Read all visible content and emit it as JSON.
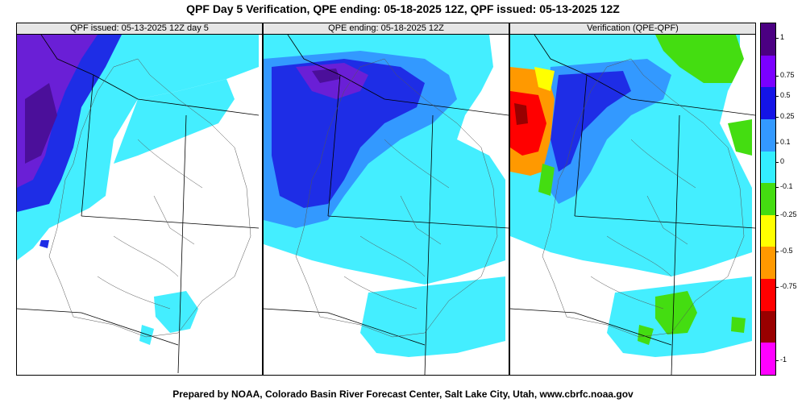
{
  "title": "QPF Day 5 Verification, QPE ending: 05-18-2025 12Z, QPF issued: 05-13-2025 12Z",
  "footer": "Prepared by NOAA, Colorado Basin River Forecast Center, Salt Lake City, Utah, www.cbrfc.noaa.gov",
  "panels": [
    {
      "title": "QPF issued: 05-13-2025 12Z day 5"
    },
    {
      "title": "QPE ending: 05-18-2025 12Z"
    },
    {
      "title": "Verification (QPE-QPF)"
    }
  ],
  "colorbar": {
    "labels": [
      "1",
      "0.75",
      "0.5",
      "0.25",
      "0.1",
      "0",
      "-0.1",
      "-0.25",
      "-0.5",
      "-0.75",
      "-1"
    ],
    "colors": [
      "#4b0082",
      "#7b00ff",
      "#1414e6",
      "#3399ff",
      "#33eeff",
      "#44dd11",
      "#ffff00",
      "#ff9900",
      "#ff0000",
      "#990000",
      "#ff00ff"
    ]
  },
  "palette": {
    "cyan": "#44eeff",
    "lightblue": "#3399ff",
    "blue": "#1e2de6",
    "purple": "#6a1fd6",
    "darkpurple": "#4b0f9a",
    "green": "#44dd11",
    "yellow": "#ffff00",
    "orange": "#ff9900",
    "red": "#ff0000",
    "darkred": "#990000"
  }
}
